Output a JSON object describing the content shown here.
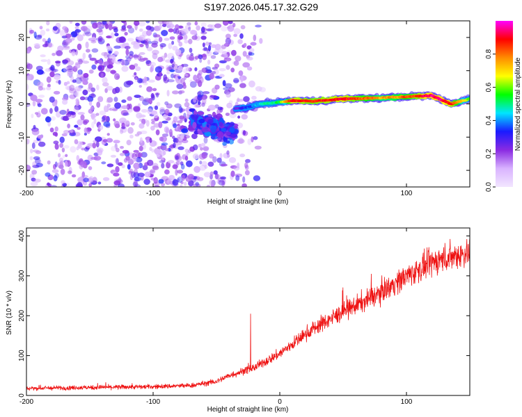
{
  "title": "S197.2026.045.17.32.G29",
  "chart_data": [
    {
      "type": "heatmap",
      "title": "S197.2026.045.17.32.G29",
      "xlabel": "Height of straight line (km)",
      "ylabel": "Frequency (Hz)",
      "xlim": [
        -200,
        150
      ],
      "ylim": [
        -25,
        25
      ],
      "xticks": [
        -200,
        -100,
        0,
        100
      ],
      "yticks": [
        -20,
        -10,
        0,
        10,
        20
      ],
      "colorbar": {
        "label": "Normalized spectral amplitude",
        "range": [
          0,
          1
        ],
        "ticks": [
          "0.0",
          "0.2",
          "0.4",
          "0.6",
          "0.8"
        ],
        "tick_values": [
          0,
          0.2,
          0.4,
          0.6,
          0.8
        ],
        "colors": [
          "#f2e6ff",
          "#d9b3ff",
          "#8a2be2",
          "#1a1aff",
          "#00e5ff",
          "#00ff00",
          "#ffff00",
          "#ff8c00",
          "#ff0000",
          "#ff00ff"
        ]
      },
      "ridge": {
        "description_x": [
          -35,
          -25,
          -15,
          0,
          10,
          25,
          50,
          80,
          100,
          120,
          135,
          150
        ],
        "frequency": [
          -1.5,
          -1,
          0,
          0.5,
          1,
          0.8,
          1.5,
          1.8,
          2.2,
          2.5,
          0,
          1.5
        ],
        "amplitude": [
          0.25,
          0.35,
          0.45,
          0.55,
          0.9,
          0.85,
          0.9,
          0.75,
          0.8,
          0.95,
          0.9,
          0.6
        ]
      },
      "noise_region": {
        "x_start": -200,
        "x_end": -35,
        "amplitude_range": [
          0.05,
          0.3
        ]
      },
      "blob": {
        "x_range": [
          -70,
          -35
        ],
        "freq_range": [
          -12,
          -3
        ],
        "amplitude_range": [
          0.2,
          0.4
        ]
      }
    },
    {
      "type": "line",
      "xlabel": "Height of straight line (km)",
      "ylabel": "SNR (10 * v/v)",
      "xlim": [
        -200,
        150
      ],
      "ylim": [
        0,
        420
      ],
      "xticks": [
        -200,
        -100,
        0,
        100
      ],
      "yticks": [
        0,
        100,
        200,
        300,
        400
      ],
      "series": [
        {
          "name": "SNR",
          "color": "#ee1111",
          "x": [
            -200,
            -150,
            -100,
            -70,
            -50,
            -40,
            -30,
            -20,
            0,
            25,
            50,
            75,
            100,
            125,
            150
          ],
          "y": [
            18,
            20,
            22,
            25,
            35,
            50,
            60,
            70,
            105,
            165,
            210,
            250,
            300,
            340,
            360
          ],
          "spikes": [
            {
              "x": -23,
              "y": 205
            }
          ]
        }
      ]
    }
  ]
}
